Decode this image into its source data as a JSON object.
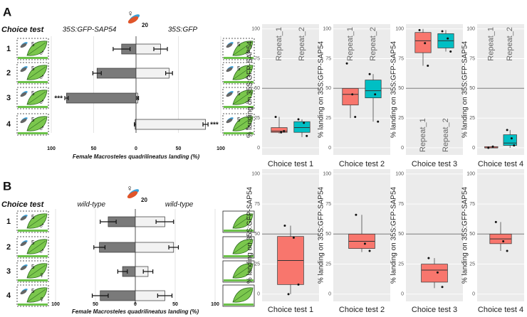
{
  "panel_labels": [
    "A",
    "B"
  ],
  "chart_data": [
    {
      "type": "bar",
      "orientation": "horizontal",
      "heading": "Choice test",
      "insect_sex": "♀",
      "insect_count": "20",
      "categories": [
        "1",
        "2",
        "3",
        "4"
      ],
      "series": [
        {
          "name": "35S:GFP-SAP54",
          "color": "#7a7a7a",
          "values": [
            -17,
            -46,
            -82,
            -1
          ],
          "errors": [
            10,
            5,
            2,
            1
          ]
        },
        {
          "name": "35S:GFP",
          "color": "#f2f2f2",
          "values": [
            29,
            39,
            2,
            82
          ],
          "errors": [
            8,
            4,
            1,
            3
          ]
        }
      ],
      "significance": [
        null,
        null,
        "***",
        "***"
      ],
      "left_icons": [
        {
          "count": "5",
          "sex": "♂"
        },
        {
          "count": "5",
          "sex": "♂"
        },
        {
          "count": "5",
          "sex": "♂"
        },
        {
          "count": "5",
          "sex": "♂"
        }
      ],
      "right_icons": [
        {
          "count": "5",
          "sex": "♂"
        },
        {
          "count": "5",
          "sex": "♂"
        },
        {
          "count": "5",
          "sex": "♂"
        },
        {
          "count": "5",
          "sex": "♂"
        }
      ],
      "xlim": [
        -100,
        100
      ],
      "xticks": [
        {
          "value": -100,
          "label": "100"
        },
        {
          "value": -50,
          "label": "50"
        },
        0,
        50,
        100
      ],
      "xlabel": "Female Macrosteles quadrilineatus landing (%)",
      "grid": true
    },
    {
      "type": "box",
      "ylabel": "% landing on 35S:GFP-SAP54",
      "xlabel": "Choice test 1",
      "ylim": [
        -6,
        104
      ],
      "yticks": [
        0,
        25,
        50,
        75,
        100
      ],
      "hline": 50,
      "label_position": "top",
      "boxes": [
        {
          "name": "Repeat_1",
          "color": "#F8766D",
          "whisker_low": 12,
          "q1": 13,
          "median": 14,
          "q3": 17,
          "whisker_high": 26,
          "points": [
            26,
            13,
            14
          ]
        },
        {
          "name": "Repeat_2",
          "color": "#00BFC4",
          "whisker_low": 9,
          "q1": 13,
          "median": 17,
          "q3": 22,
          "whisker_high": 24,
          "points": [
            24,
            21,
            10
          ]
        }
      ]
    },
    {
      "type": "box",
      "ylabel": "% landing on 35S:GFP-SAP54",
      "xlabel": "Choice test 2",
      "ylim": [
        -6,
        104
      ],
      "yticks": [
        0,
        25,
        50,
        75,
        100
      ],
      "hline": 50,
      "label_position": "top",
      "boxes": [
        {
          "name": "Repeat_1",
          "color": "#F8766D",
          "whisker_low": 25,
          "q1": 36,
          "median": 45,
          "q3": 50,
          "whisker_high": 50,
          "points": [
            71,
            45,
            26
          ]
        },
        {
          "name": "Repeat_2",
          "color": "#00BFC4",
          "whisker_low": 22,
          "q1": 42,
          "median": 48,
          "q3": 57,
          "whisker_high": 62,
          "points": [
            62,
            45,
            22
          ]
        }
      ]
    },
    {
      "type": "box",
      "ylabel": "% landing on 35S:GFP-SAP54",
      "xlabel": "Choice test 3",
      "ylim": [
        -6,
        104
      ],
      "yticks": [
        0,
        25,
        50,
        75,
        100
      ],
      "hline": 50,
      "label_position": "bottom",
      "boxes": [
        {
          "name": "Repeat_1",
          "color": "#F8766D",
          "whisker_low": 69,
          "q1": 80,
          "median": 90,
          "q3": 97,
          "whisker_high": 100,
          "points": [
            99,
            88,
            69
          ]
        },
        {
          "name": "Repeat_2",
          "color": "#00BFC4",
          "whisker_low": 81,
          "q1": 84,
          "median": 90,
          "q3": 96,
          "whisker_high": 99,
          "points": [
            98,
            92,
            81
          ]
        }
      ]
    },
    {
      "type": "box",
      "ylabel": "% landing on 35S:GFP-SAP54",
      "xlabel": "Choice test 4",
      "ylim": [
        -6,
        104
      ],
      "yticks": [
        0,
        25,
        50,
        75,
        100
      ],
      "hline": 50,
      "label_position": "top",
      "boxes": [
        {
          "name": "Repeat_1",
          "color": "#F8766D",
          "whisker_low": 0,
          "q1": 0,
          "median": 0,
          "q3": 1,
          "whisker_high": 1,
          "points": [
            0,
            1
          ]
        },
        {
          "name": "Repeat_2",
          "color": "#00BFC4",
          "whisker_low": 0,
          "q1": 2,
          "median": 4,
          "q3": 11,
          "whisker_high": 15,
          "points": [
            15,
            8,
            2
          ]
        }
      ]
    },
    {
      "type": "bar",
      "orientation": "horizontal",
      "heading": "Choice test",
      "insect_sex": "♀",
      "insect_count": "20",
      "categories": [
        "1",
        "2",
        "3",
        "4"
      ],
      "series": [
        {
          "name": "wild-type",
          "color": "#7a7a7a",
          "values": [
            -34,
            -45,
            -16,
            -44
          ],
          "errors": [
            10,
            7,
            6,
            10
          ]
        },
        {
          "name": "wild-type",
          "color": "#f2f2f2",
          "values": [
            37,
            48,
            16,
            37
          ],
          "errors": [
            11,
            6,
            6,
            9
          ]
        }
      ],
      "left_icons": [
        {
          "count": "5",
          "sex": "♂"
        },
        {
          "count": "5",
          "sex": "♂"
        },
        {
          "count": "5",
          "sex": "♀"
        },
        {
          "count": "5",
          "sex": "♀"
        }
      ],
      "right_icons": [
        null,
        null,
        null,
        null
      ],
      "xlim": [
        -100,
        100
      ],
      "xticks": [
        {
          "value": -100,
          "label": "100"
        },
        {
          "value": -50,
          "label": "50"
        },
        0,
        50,
        100
      ],
      "xlabel": "Female Macrosteles quadrilineatus landing (%)",
      "grid": true
    },
    {
      "type": "box",
      "ylabel": "% landing on 35S:GFP-SAP54",
      "xlabel": "Choice test 1",
      "ylim": [
        -6,
        104
      ],
      "yticks": [
        0,
        25,
        50,
        75,
        100
      ],
      "hline": 50,
      "boxes": [
        {
          "color": "#F8766D",
          "whisker_low": 0,
          "q1": 8,
          "median": 28,
          "q3": 48,
          "whisker_high": 57,
          "points": [
            57,
            47,
            8,
            0
          ]
        }
      ]
    },
    {
      "type": "box",
      "ylabel": "% landing on 35S:GFP-SAP54",
      "xlabel": "Choice test 2",
      "ylim": [
        -6,
        104
      ],
      "yticks": [
        0,
        25,
        50,
        75,
        100
      ],
      "hline": 50,
      "boxes": [
        {
          "color": "#F8766D",
          "whisker_low": 35,
          "q1": 38,
          "median": 44,
          "q3": 50,
          "whisker_high": 66,
          "points": [
            66,
            42,
            36
          ]
        }
      ]
    },
    {
      "type": "box",
      "ylabel": "% landing on 35S:GFP-SAP54",
      "xlabel": "Choice test 3",
      "ylim": [
        -6,
        104
      ],
      "yticks": [
        0,
        25,
        50,
        75,
        100
      ],
      "hline": 50,
      "boxes": [
        {
          "color": "#F8766D",
          "whisker_low": 5,
          "q1": 10,
          "median": 20,
          "q3": 25,
          "whisker_high": 30,
          "points": [
            30,
            18,
            6
          ]
        }
      ]
    },
    {
      "type": "box",
      "ylabel": "% landing on 35S:GFP-SAP54",
      "xlabel": "Choice test 4",
      "ylim": [
        -6,
        104
      ],
      "yticks": [
        0,
        25,
        50,
        75,
        100
      ],
      "hline": 50,
      "boxes": [
        {
          "color": "#F8766D",
          "whisker_low": 36,
          "q1": 42,
          "median": 46,
          "q3": 50,
          "whisker_high": 60,
          "points": [
            60,
            44,
            36
          ]
        }
      ]
    }
  ]
}
